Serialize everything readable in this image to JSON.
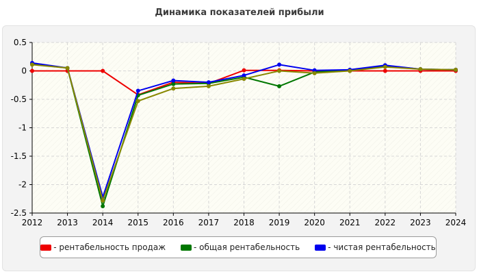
{
  "title": "Динамика показателей прибыли",
  "colors": {
    "background": "#ffffff",
    "panel": "#f3f3f3",
    "plot_area": "#fdfdf5",
    "grid": "#d6d6d6"
  },
  "chart_data": {
    "type": "line",
    "title": "Динамика показателей прибыли",
    "xlabel": "",
    "ylabel": "",
    "x": [
      "2012",
      "2013",
      "2014",
      "2015",
      "2016",
      "2017",
      "2018",
      "2019",
      "2020",
      "2021",
      "2022",
      "2023",
      "2024"
    ],
    "ylim": [
      -2.5,
      0.5
    ],
    "yticks": [
      0.5,
      0,
      -0.5,
      -1,
      -1.5,
      -2,
      -2.5
    ],
    "ytick_labels": [
      "0.5",
      "0",
      "-0.5",
      "-1",
      "-1.5",
      "-2",
      "-2.5"
    ],
    "grid": true,
    "legend_position": "bottom",
    "series": [
      {
        "name": "- рентабельность продаж",
        "color": "#ee0000",
        "values": [
          0,
          0,
          0,
          -0.42,
          -0.2,
          -0.22,
          0.01,
          0.01,
          0,
          0,
          0,
          0,
          0
        ]
      },
      {
        "name": "- общая рентабельность",
        "color": "#007700",
        "values": [
          0.12,
          0.05,
          -2.38,
          -0.43,
          -0.23,
          -0.22,
          -0.11,
          -0.27,
          -0.02,
          0.01,
          0.09,
          0.03,
          0.02
        ]
      },
      {
        "name": "- чистая рентабельность",
        "color": "#0000ee",
        "values": [
          0.14,
          0.05,
          -2.22,
          -0.35,
          -0.17,
          -0.2,
          -0.08,
          0.11,
          0.01,
          0.02,
          0.1,
          0.03,
          0.02
        ]
      },
      {
        "name": "",
        "color": "#888800",
        "values": [
          0.11,
          0.05,
          -2.28,
          -0.53,
          -0.31,
          -0.27,
          -0.14,
          0,
          -0.04,
          0,
          0.07,
          0.03,
          0.02
        ]
      }
    ]
  }
}
